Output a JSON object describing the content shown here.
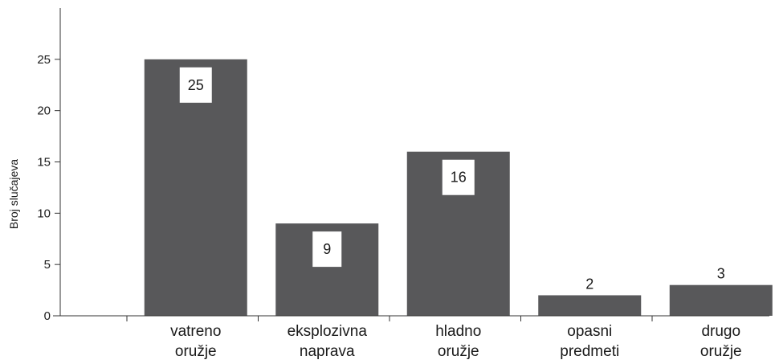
{
  "chart_data": {
    "type": "bar",
    "categories": [
      [
        "vatreno",
        "oružje"
      ],
      [
        "eksplozivna",
        "naprava"
      ],
      [
        "hladno",
        "oružje"
      ],
      [
        "opasni",
        "predmeti"
      ],
      [
        "drugo",
        "oružje"
      ]
    ],
    "values": [
      25,
      9,
      16,
      2,
      3
    ],
    "data_labels": [
      "25",
      "9",
      "16",
      "2",
      "3"
    ],
    "title": "",
    "xlabel": "",
    "ylabel": "Broj slučajeva",
    "ylim": [
      0,
      30
    ],
    "yticks": [
      0,
      5,
      10,
      15,
      20,
      25
    ],
    "grid": false,
    "legend": "none",
    "colors": {
      "bar": "#58585a",
      "axis": "#333333",
      "label_box": "#ffffff"
    }
  }
}
